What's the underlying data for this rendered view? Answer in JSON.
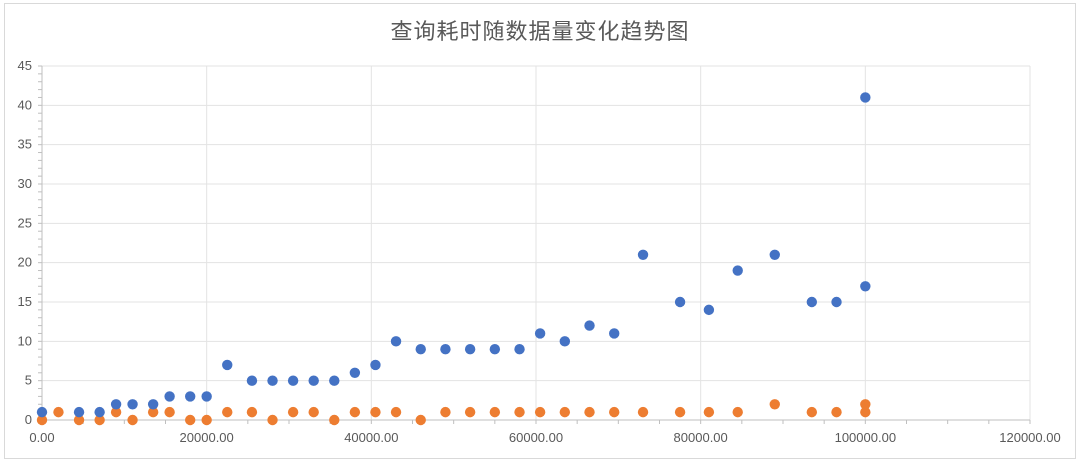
{
  "chart_data": {
    "type": "scatter",
    "title": "查询耗时随数据量变化趋势图",
    "xlim": [
      0,
      120000
    ],
    "ylim": [
      0,
      45
    ],
    "x_ticks": [
      "0.00",
      "20000.00",
      "40000.00",
      "60000.00",
      "80000.00",
      "100000.00",
      "120000.00"
    ],
    "y_ticks": [
      "0",
      "5",
      "10",
      "15",
      "20",
      "25",
      "30",
      "35",
      "40",
      "45"
    ],
    "grid": true,
    "series": [
      {
        "color": "#4472C4",
        "points": [
          [
            0,
            1
          ],
          [
            4500,
            1
          ],
          [
            7000,
            1
          ],
          [
            9000,
            2
          ],
          [
            11000,
            2
          ],
          [
            13500,
            2
          ],
          [
            15500,
            3
          ],
          [
            18000,
            3
          ],
          [
            20000,
            3
          ],
          [
            22500,
            7
          ],
          [
            25500,
            5
          ],
          [
            28000,
            5
          ],
          [
            30500,
            5
          ],
          [
            33000,
            5
          ],
          [
            35500,
            5
          ],
          [
            38000,
            6
          ],
          [
            40500,
            7
          ],
          [
            43000,
            10
          ],
          [
            46000,
            9
          ],
          [
            49000,
            9
          ],
          [
            52000,
            9
          ],
          [
            55000,
            9
          ],
          [
            58000,
            9
          ],
          [
            60500,
            11
          ],
          [
            63500,
            10
          ],
          [
            66500,
            12
          ],
          [
            69500,
            11
          ],
          [
            73000,
            21
          ],
          [
            77500,
            15
          ],
          [
            81000,
            14
          ],
          [
            84500,
            19
          ],
          [
            89000,
            21
          ],
          [
            93500,
            15
          ],
          [
            96500,
            15
          ],
          [
            100000,
            17
          ],
          [
            100000,
            41
          ]
        ]
      },
      {
        "color": "#ED7D31",
        "points": [
          [
            0,
            0
          ],
          [
            2000,
            1
          ],
          [
            4500,
            0
          ],
          [
            7000,
            0
          ],
          [
            9000,
            1
          ],
          [
            11000,
            0
          ],
          [
            13500,
            1
          ],
          [
            15500,
            1
          ],
          [
            18000,
            0
          ],
          [
            20000,
            0
          ],
          [
            22500,
            1
          ],
          [
            25500,
            1
          ],
          [
            28000,
            0
          ],
          [
            30500,
            1
          ],
          [
            33000,
            1
          ],
          [
            35500,
            0
          ],
          [
            38000,
            1
          ],
          [
            40500,
            1
          ],
          [
            43000,
            1
          ],
          [
            46000,
            0
          ],
          [
            49000,
            1
          ],
          [
            52000,
            1
          ],
          [
            55000,
            1
          ],
          [
            58000,
            1
          ],
          [
            60500,
            1
          ],
          [
            63500,
            1
          ],
          [
            66500,
            1
          ],
          [
            69500,
            1
          ],
          [
            73000,
            1
          ],
          [
            77500,
            1
          ],
          [
            81000,
            1
          ],
          [
            84500,
            1
          ],
          [
            89000,
            2
          ],
          [
            93500,
            1
          ],
          [
            96500,
            1
          ],
          [
            100000,
            1
          ],
          [
            100000,
            2
          ]
        ]
      }
    ]
  }
}
